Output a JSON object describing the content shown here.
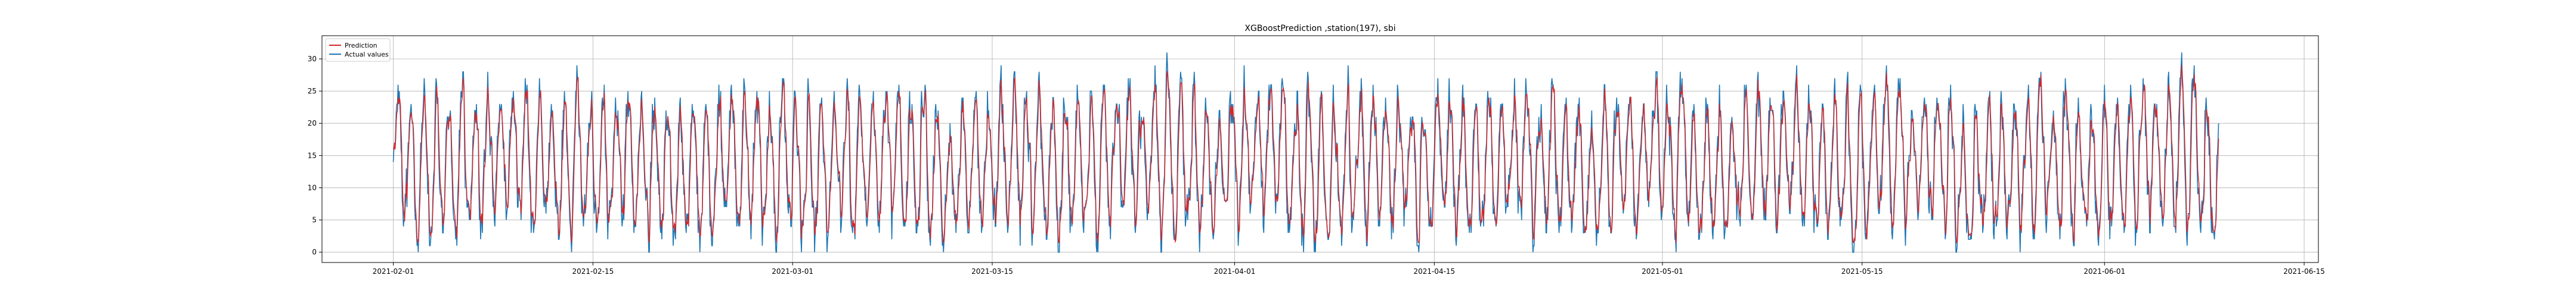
{
  "chart_data": {
    "type": "line",
    "title": "XGBoostPrediction ,station(197), sbi",
    "xlabel": "",
    "ylabel": "",
    "x_range": [
      "2021-01-27",
      "2021-06-16"
    ],
    "x_data_range": [
      "2021-02-01",
      "2021-06-09"
    ],
    "ylim": [
      -1.6,
      33.6
    ],
    "grid": true,
    "legend_position": "upper-left",
    "x_ticks": [
      "2021-02-01",
      "2021-02-15",
      "2021-03-01",
      "2021-03-15",
      "2021-04-01",
      "2021-04-15",
      "2021-05-01",
      "2021-05-15",
      "2021-06-01",
      "2021-06-15"
    ],
    "y_ticks": [
      0,
      5,
      10,
      15,
      20,
      25,
      30
    ],
    "y_min": 0,
    "y_max": 32,
    "series": [
      {
        "name": "Prediction",
        "color": "#d62728"
      },
      {
        "name": "Actual values",
        "color": "#1f77b4"
      }
    ]
  }
}
